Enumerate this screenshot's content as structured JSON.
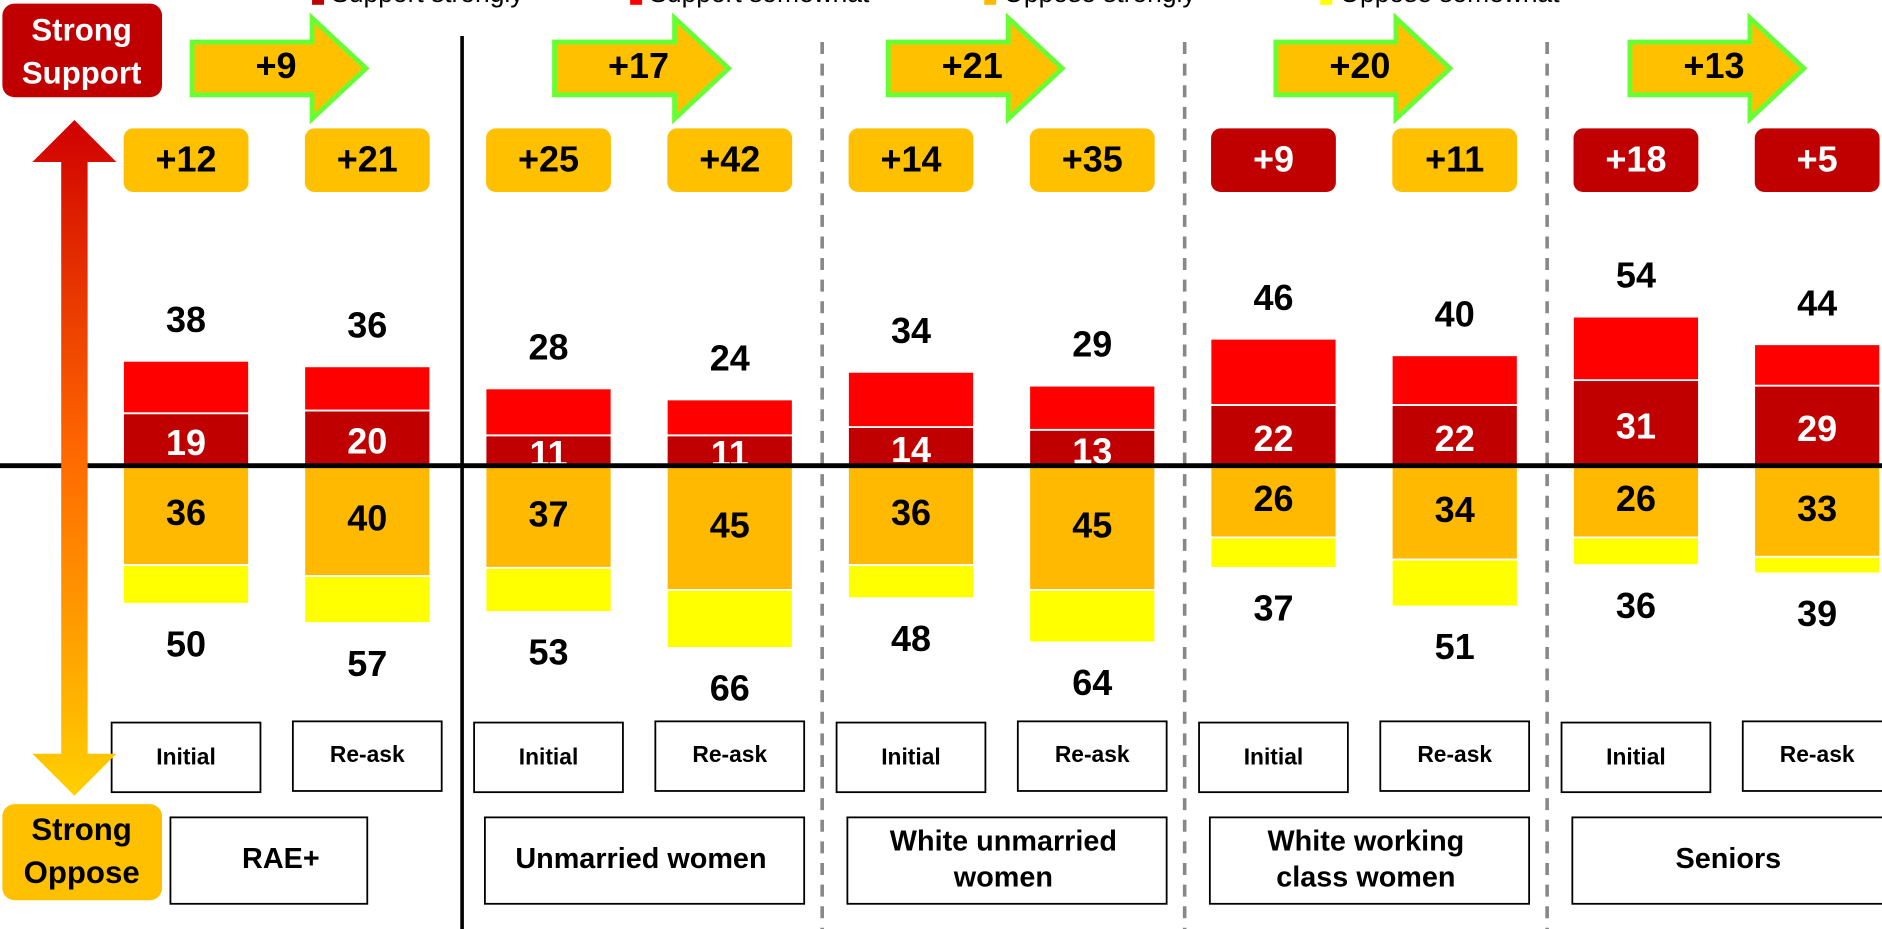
{
  "chart_data": {
    "type": "diverging-stacked-bar",
    "legend_position": "top",
    "side_labels": {
      "top": "Strong Support",
      "bottom": "Strong Oppose"
    },
    "groups": [
      "RAE+",
      "Unmarried women",
      "White unmarried women",
      "White working class women",
      "Seniors"
    ],
    "categories": [
      "Initial",
      "Re-ask",
      "Initial",
      "Re-ask",
      "Initial",
      "Re-ask",
      "Initial",
      "Re-ask",
      "Initial",
      "Re-ask"
    ],
    "series": [
      {
        "name": "Support strongly",
        "color": "#c00000",
        "side": "support",
        "values": [
          19,
          20,
          11,
          11,
          14,
          13,
          22,
          22,
          31,
          29
        ]
      },
      {
        "name": "Support somewhat",
        "color": "#ff0000",
        "side": "support",
        "values": [
          19,
          16,
          17,
          13,
          20,
          16,
          24,
          18,
          23,
          15
        ]
      },
      {
        "name": "Oppose strongly",
        "color": "#ffb900",
        "side": "oppose",
        "values": [
          36,
          40,
          37,
          45,
          36,
          45,
          26,
          34,
          26,
          33
        ]
      },
      {
        "name": "Oppose somewhat",
        "color": "#ffff00",
        "side": "oppose",
        "values": [
          14,
          17,
          16,
          21,
          12,
          19,
          11,
          17,
          10,
          6
        ]
      }
    ],
    "support_totals": [
      38,
      36,
      28,
      24,
      34,
      29,
      46,
      40,
      54,
      44
    ],
    "oppose_totals": [
      50,
      57,
      53,
      66,
      48,
      64,
      37,
      51,
      36,
      39
    ],
    "nets": [
      {
        "value": 12,
        "label": "+12"
      },
      {
        "value": 21,
        "label": "+21"
      },
      {
        "value": 25,
        "label": "+25"
      },
      {
        "value": 42,
        "label": "+42"
      },
      {
        "value": 14,
        "label": "+14"
      },
      {
        "value": 35,
        "label": "+35"
      },
      {
        "value": 9,
        "label": "+9"
      },
      {
        "value": 11,
        "label": "+11"
      },
      {
        "value": 18,
        "label": "+18"
      },
      {
        "value": 5,
        "label": "+5"
      }
    ],
    "net_colors": [
      "#ffc000",
      "#ffc000",
      "#ffc000",
      "#ffc000",
      "#ffc000",
      "#ffc000",
      "#c00000",
      "#ffc000",
      "#c00000",
      "#c00000"
    ],
    "shifts": [
      {
        "value": 9,
        "label": "+9"
      },
      {
        "value": 17,
        "label": "+17"
      },
      {
        "value": 21,
        "label": "+21"
      },
      {
        "value": 20,
        "label": "+20"
      },
      {
        "value": 13,
        "label": "+13"
      }
    ]
  }
}
